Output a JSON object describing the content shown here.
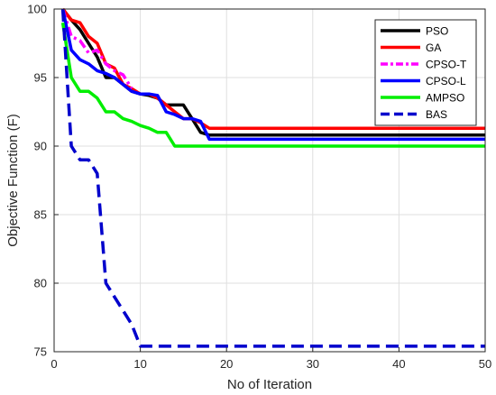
{
  "chart_data": {
    "type": "line",
    "title": "",
    "xlabel": "No of Iteration",
    "ylabel": "Objective Function (F)",
    "xlim": [
      0,
      50
    ],
    "ylim": [
      75,
      100
    ],
    "xticks": [
      "0",
      "10",
      "20",
      "30",
      "40",
      "50"
    ],
    "yticks": [
      "75",
      "80",
      "85",
      "90",
      "95",
      "100"
    ],
    "grid": true,
    "legend_position": "top-right",
    "series": [
      {
        "name": "PSO",
        "color": "#000000",
        "dash": "solid",
        "points": [
          [
            1,
            100
          ],
          [
            2,
            99.2
          ],
          [
            3,
            98.5
          ],
          [
            4,
            97.5
          ],
          [
            5,
            96.5
          ],
          [
            6,
            95
          ],
          [
            7,
            95
          ],
          [
            8,
            94.5
          ],
          [
            9,
            94
          ],
          [
            10,
            93.8
          ],
          [
            11,
            93.7
          ],
          [
            12,
            93.5
          ],
          [
            13,
            93
          ],
          [
            14,
            93
          ],
          [
            15,
            93
          ],
          [
            16,
            92
          ],
          [
            17,
            91
          ],
          [
            18,
            90.8
          ],
          [
            50,
            90.8
          ]
        ]
      },
      {
        "name": "GA",
        "color": "#ff0000",
        "dash": "solid",
        "points": [
          [
            1,
            100
          ],
          [
            2,
            99.2
          ],
          [
            3,
            99
          ],
          [
            4,
            98
          ],
          [
            5,
            97.5
          ],
          [
            6,
            96
          ],
          [
            7,
            95.7
          ],
          [
            8,
            94.5
          ],
          [
            9,
            94.2
          ],
          [
            10,
            93.8
          ],
          [
            11,
            93.8
          ],
          [
            12,
            93.5
          ],
          [
            13,
            93
          ],
          [
            14,
            92.5
          ],
          [
            15,
            92
          ],
          [
            16,
            92
          ],
          [
            17,
            91.7
          ],
          [
            18,
            91.3
          ],
          [
            50,
            91.3
          ]
        ]
      },
      {
        "name": "CPSO-T",
        "color": "#ff00ff",
        "dash": "dashdot",
        "points": [
          [
            1,
            100
          ],
          [
            2,
            98
          ],
          [
            3,
            97.7
          ],
          [
            4,
            96.8
          ],
          [
            5,
            97
          ],
          [
            6,
            96
          ],
          [
            7,
            95.5
          ],
          [
            8,
            95.2
          ],
          [
            9,
            94.2
          ]
        ]
      },
      {
        "name": "CPSO-L",
        "color": "#0000ff",
        "dash": "solid",
        "points": [
          [
            1,
            100
          ],
          [
            2,
            97
          ],
          [
            3,
            96.3
          ],
          [
            4,
            96
          ],
          [
            5,
            95.5
          ],
          [
            6,
            95.3
          ],
          [
            7,
            95
          ],
          [
            8,
            94.5
          ],
          [
            9,
            94
          ],
          [
            10,
            93.8
          ],
          [
            11,
            93.8
          ],
          [
            12,
            93.7
          ],
          [
            13,
            92.5
          ],
          [
            14,
            92.3
          ],
          [
            15,
            92
          ],
          [
            16,
            92
          ],
          [
            17,
            91.8
          ],
          [
            18,
            90.5
          ],
          [
            50,
            90.5
          ]
        ]
      },
      {
        "name": "AMPSO",
        "color": "#00ee00",
        "dash": "solid",
        "points": [
          [
            1,
            99
          ],
          [
            2,
            95
          ],
          [
            3,
            94
          ],
          [
            4,
            94
          ],
          [
            5,
            93.5
          ],
          [
            6,
            92.5
          ],
          [
            7,
            92.5
          ],
          [
            8,
            92
          ],
          [
            9,
            91.8
          ],
          [
            10,
            91.5
          ],
          [
            11,
            91.3
          ],
          [
            12,
            91
          ],
          [
            13,
            91
          ],
          [
            14,
            90
          ],
          [
            50,
            90
          ]
        ]
      },
      {
        "name": "BAS",
        "color": "#0000cc",
        "dash": "dashed",
        "points": [
          [
            1,
            100
          ],
          [
            2,
            90
          ],
          [
            3,
            89
          ],
          [
            4,
            89
          ],
          [
            5,
            88
          ],
          [
            6,
            80
          ],
          [
            7,
            79
          ],
          [
            8,
            78
          ],
          [
            9,
            77
          ],
          [
            10,
            75.4
          ],
          [
            50,
            75.4
          ]
        ]
      }
    ]
  }
}
